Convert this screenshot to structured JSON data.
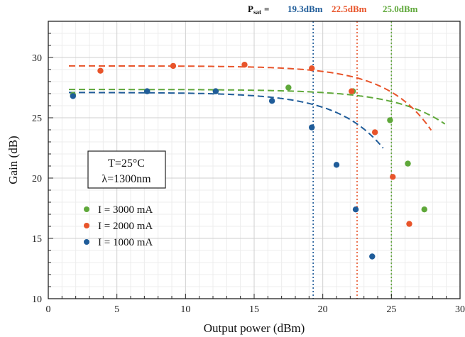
{
  "chart_data": {
    "type": "scatter",
    "xlabel": "Output power (dBm)",
    "ylabel": "Gain (dB)",
    "xlim": [
      0,
      30
    ],
    "ylim": [
      10,
      33
    ],
    "xticks": [
      0,
      5,
      10,
      15,
      20,
      25,
      30
    ],
    "yticks": [
      10,
      15,
      20,
      25,
      30
    ],
    "grid": true,
    "legend_placement": "lower-left",
    "conditions": [
      "T=25°C",
      "λ=1300nm"
    ],
    "psat": {
      "label": "P",
      "label_sub": "sat",
      "equals": "=",
      "values": [
        {
          "text": "19.3dBm",
          "x": 19.3,
          "color": "#1f5c99"
        },
        {
          "text": "22.5dBm",
          "x": 22.5,
          "color": "#e8542a"
        },
        {
          "text": "25.0dBm",
          "x": 25.0,
          "color": "#5fa83a"
        }
      ]
    },
    "series": [
      {
        "name": "I = 3000 mA",
        "color": "#5fa83a",
        "x": [
          1.8,
          7.2,
          12.2,
          17.5,
          22.2,
          24.9,
          26.2,
          27.4
        ],
        "y": [
          26.9,
          27.2,
          27.2,
          27.5,
          27.2,
          24.8,
          21.2,
          17.4
        ],
        "fit": {
          "g0": 27.35,
          "psat": 25.0,
          "k": 0.27,
          "xmax": 29.0
        }
      },
      {
        "name": "I = 2000 mA",
        "color": "#e8542a",
        "x": [
          3.8,
          9.1,
          14.3,
          19.2,
          22.1,
          23.8,
          25.1,
          26.3
        ],
        "y": [
          28.9,
          29.3,
          29.4,
          29.1,
          27.2,
          23.8,
          20.1,
          16.2
        ],
        "fit": {
          "g0": 29.3,
          "psat": 22.5,
          "k": 0.31,
          "xmax": 28.0
        }
      },
      {
        "name": "I = 1000 mA",
        "color": "#1f5c99",
        "x": [
          1.8,
          7.2,
          12.2,
          16.3,
          19.2,
          21.0,
          22.4,
          23.6
        ],
        "y": [
          26.8,
          27.2,
          27.2,
          26.4,
          24.2,
          21.1,
          17.4,
          13.5
        ],
        "fit": {
          "g0": 27.1,
          "psat": 19.3,
          "k": 0.3,
          "xmax": 24.5
        }
      }
    ]
  }
}
